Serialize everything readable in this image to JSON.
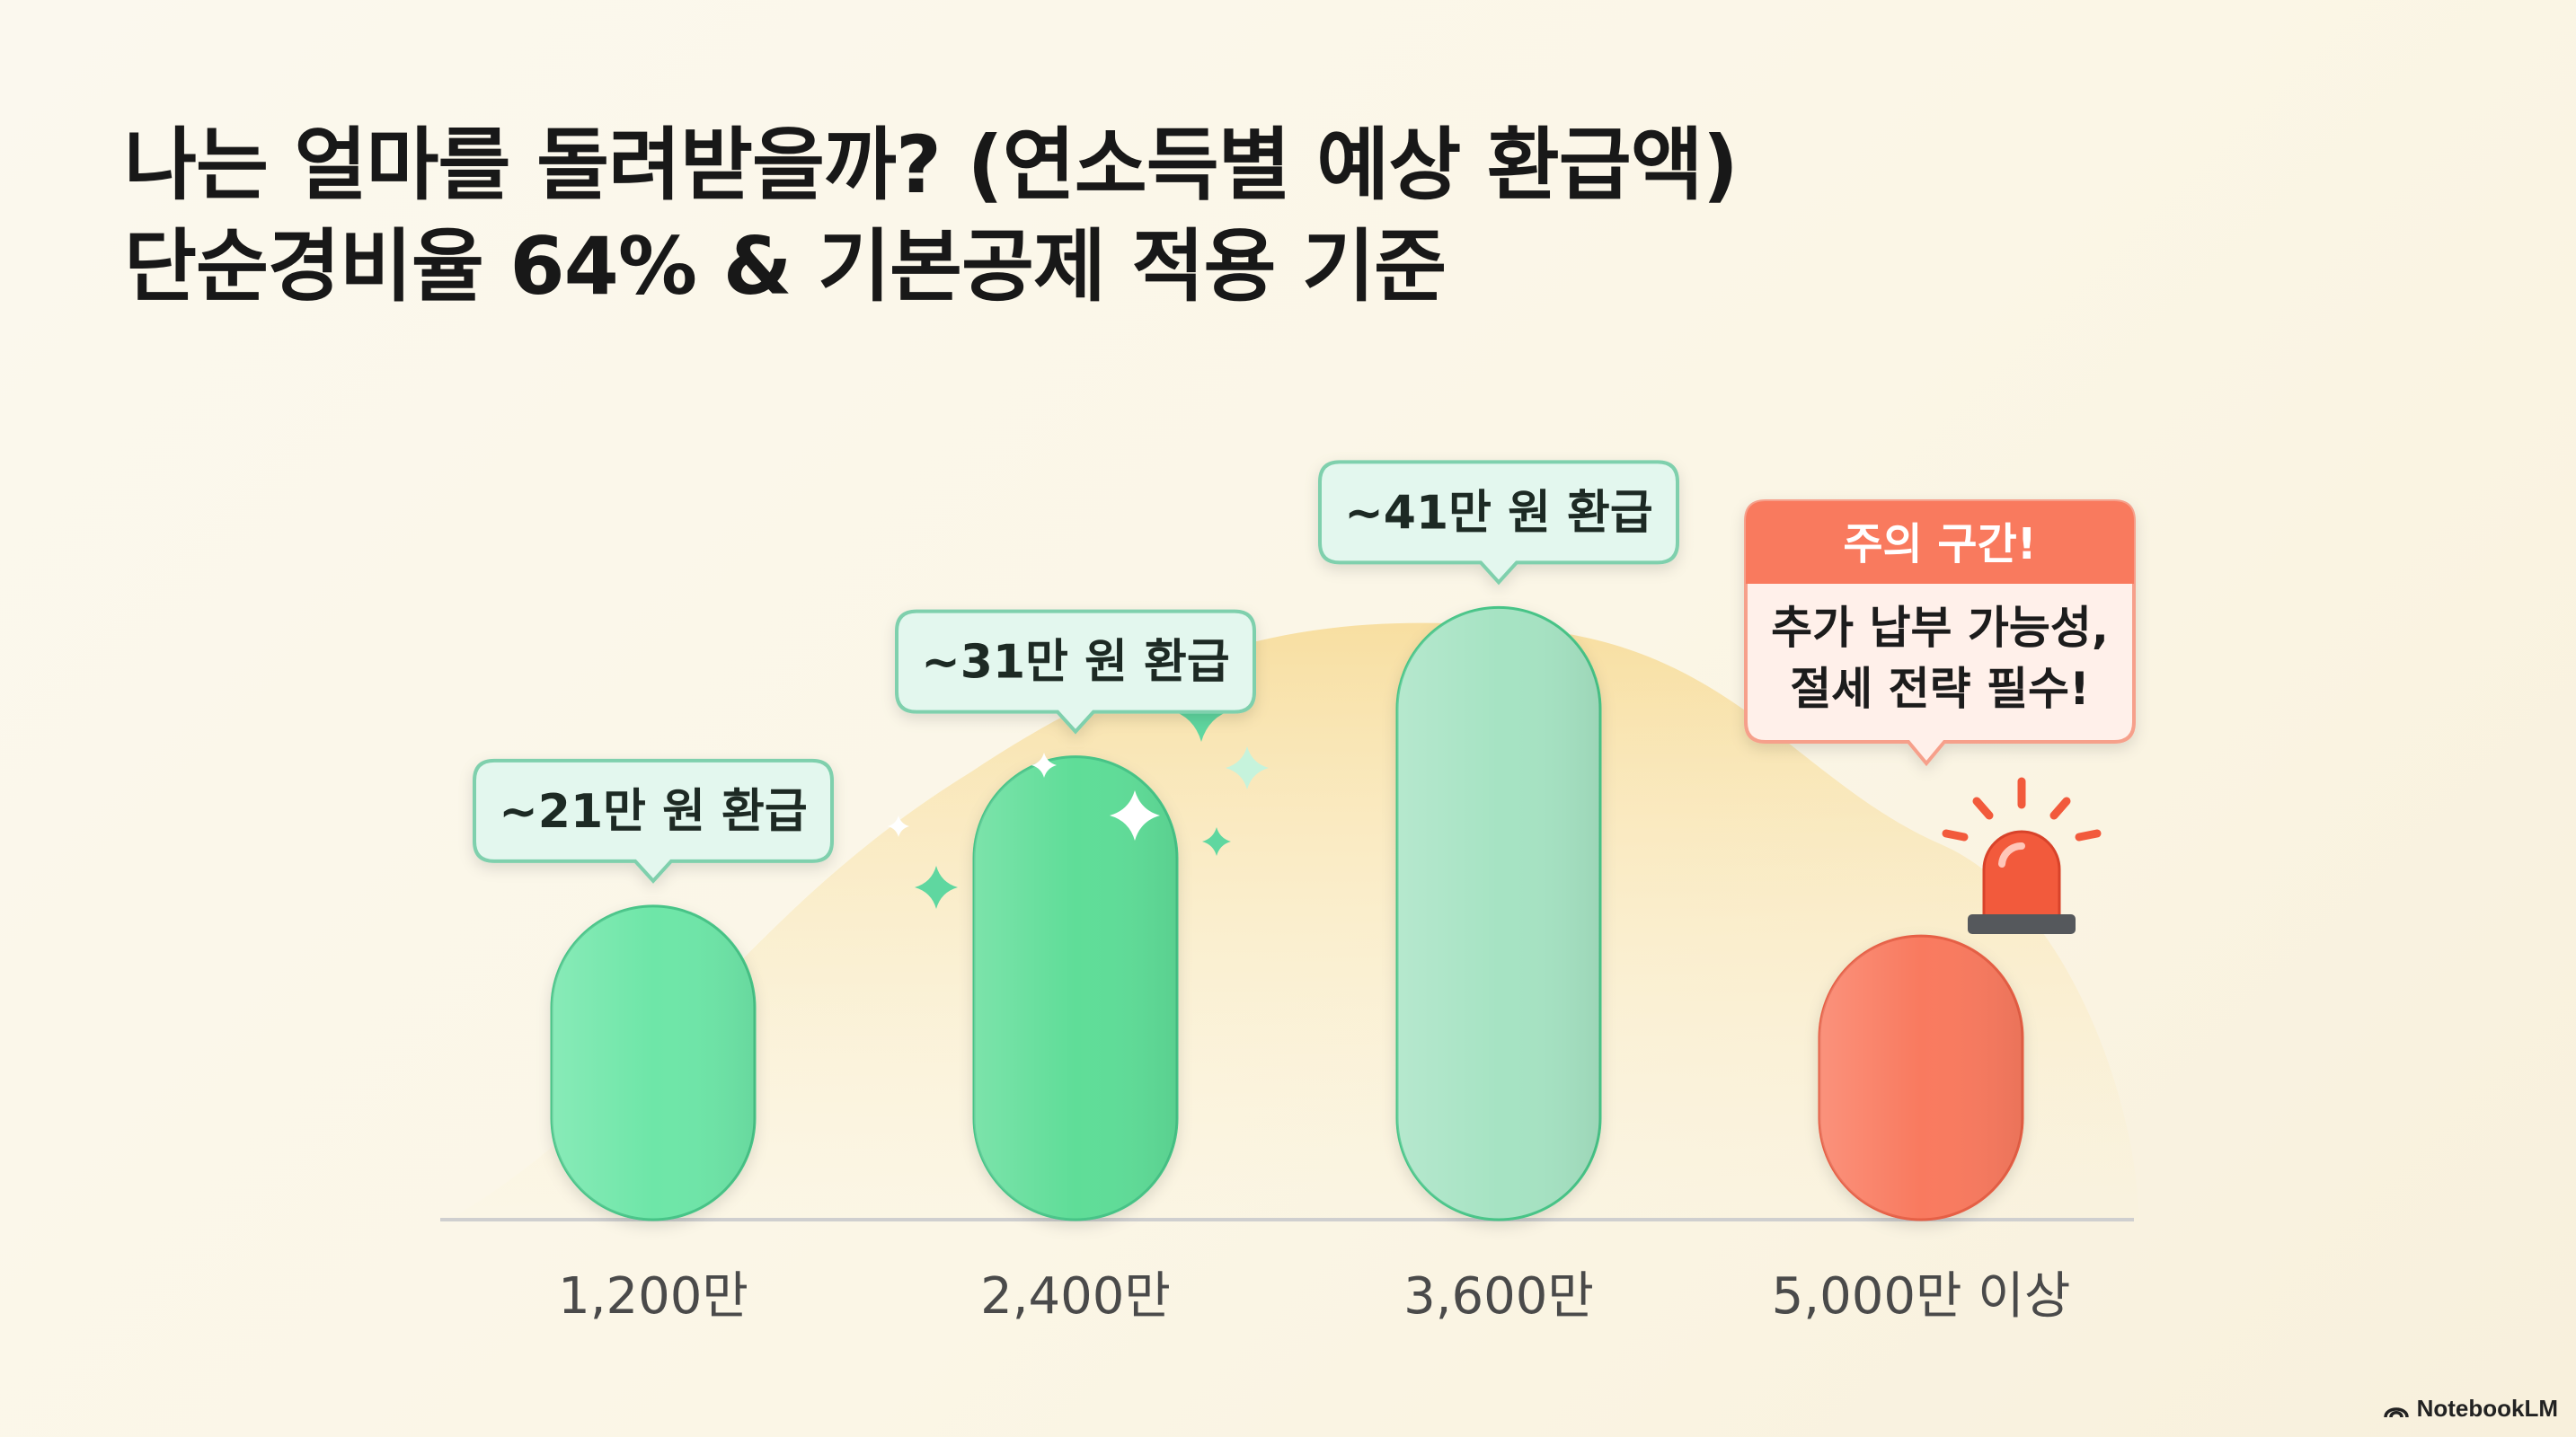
{
  "header": {
    "title_line1": "나는 얼마를 돌려받을까? (연소득별 예상 환급액)",
    "title_line2": "단순경비율 64% & 기본공제 적용 기준"
  },
  "chart_data": {
    "type": "bar",
    "categories": [
      "1,200만",
      "2,400만",
      "3,600만",
      "5,000만 이상"
    ],
    "values": [
      21,
      31,
      41,
      19
    ],
    "value_labels": [
      "~21만 원 환급",
      "~31만 원 환급",
      "~41만 원 환급",
      ""
    ],
    "bar_colors": [
      "#6ee6a8",
      "#5fdd98",
      "#a6e3c3",
      "#f97a5e"
    ],
    "warning": {
      "category_index": 3,
      "heading": "주의 구간!",
      "lines": [
        "추가 납부 가능성,",
        "절세 전략 필수!"
      ],
      "color": "#f97a5e"
    },
    "ylim": [
      0,
      48
    ],
    "grid": false,
    "background_curve": true
  },
  "colors": {
    "callout_fill": "#e3f7ee",
    "callout_stroke": "#7fd0ad",
    "curve_fill": "#f7dc92",
    "sparkle": "#5fd7a0"
  },
  "watermark": {
    "label": "NotebookLM",
    "icon": "notebooklm-logo-icon"
  }
}
